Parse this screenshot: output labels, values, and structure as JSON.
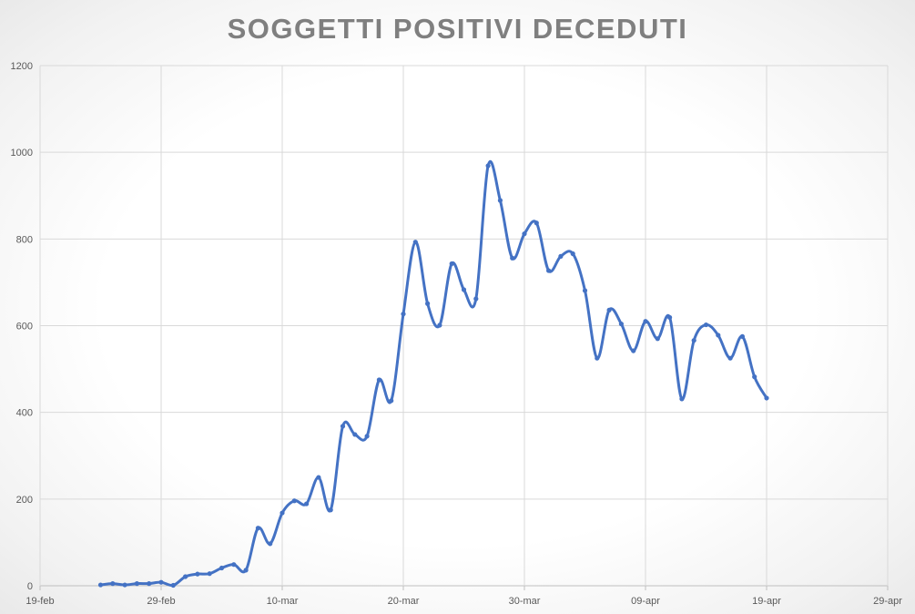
{
  "chart_data": {
    "type": "line",
    "title": "SOGGETTI POSITIVI DECEDUTI",
    "xlabel": "",
    "ylabel": "",
    "xlim": [
      "19-feb",
      "29-apr"
    ],
    "ylim": [
      0,
      1200
    ],
    "x_ticks": [
      "19-feb",
      "29-feb",
      "10-mar",
      "20-mar",
      "30-mar",
      "09-apr",
      "19-apr",
      "29-apr"
    ],
    "y_ticks": [
      0,
      200,
      400,
      600,
      800,
      1000,
      1200
    ],
    "grid": true,
    "legend": "none",
    "line_color": "#4472C4",
    "series": [
      {
        "x": [
          "24-feb",
          "25-feb",
          "26-feb",
          "27-feb",
          "28-feb",
          "29-feb",
          "01-mar",
          "02-mar",
          "03-mar",
          "04-mar",
          "05-mar",
          "06-mar",
          "07-mar",
          "08-mar",
          "09-mar",
          "10-mar",
          "11-mar",
          "12-mar",
          "13-mar",
          "14-mar",
          "15-mar",
          "16-mar",
          "17-mar",
          "18-mar",
          "19-mar",
          "20-mar",
          "21-mar",
          "22-mar",
          "23-mar",
          "24-mar",
          "25-mar",
          "26-mar",
          "27-mar",
          "28-mar",
          "29-mar",
          "30-mar",
          "31-mar",
          "01-apr",
          "02-apr",
          "03-apr",
          "04-apr",
          "05-apr",
          "06-apr",
          "07-apr",
          "08-apr",
          "09-apr",
          "10-apr",
          "11-apr",
          "12-apr",
          "13-apr",
          "14-apr",
          "15-apr",
          "16-apr",
          "17-apr",
          "18-apr",
          "19-apr"
        ],
        "values": [
          2,
          5,
          2,
          5,
          5,
          8,
          1,
          21,
          27,
          28,
          41,
          49,
          36,
          133,
          97,
          168,
          196,
          189,
          250,
          175,
          368,
          349,
          345,
          475,
          427,
          627,
          793,
          651,
          601,
          743,
          683,
          662,
          969,
          889,
          756,
          812,
          837,
          727,
          760,
          766,
          681,
          525,
          636,
          604,
          542,
          610,
          570,
          619,
          431,
          566,
          602,
          578,
          525,
          575,
          482,
          433
        ]
      }
    ]
  }
}
